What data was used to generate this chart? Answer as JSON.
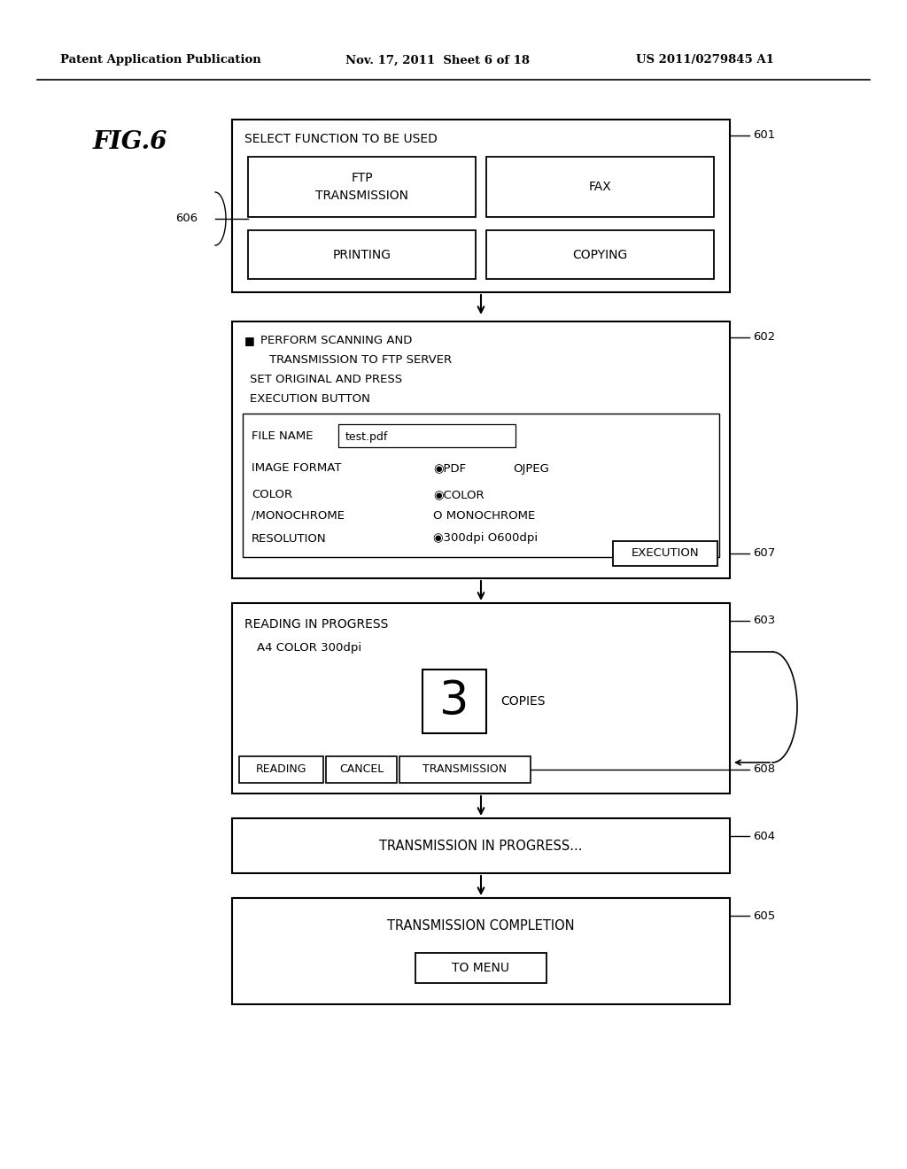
{
  "header_left": "Patent Application Publication",
  "header_mid": "Nov. 17, 2011  Sheet 6 of 18",
  "header_right": "US 2011/0279845 A1",
  "fig_label": "FIG.6",
  "bg_color": "#ffffff"
}
